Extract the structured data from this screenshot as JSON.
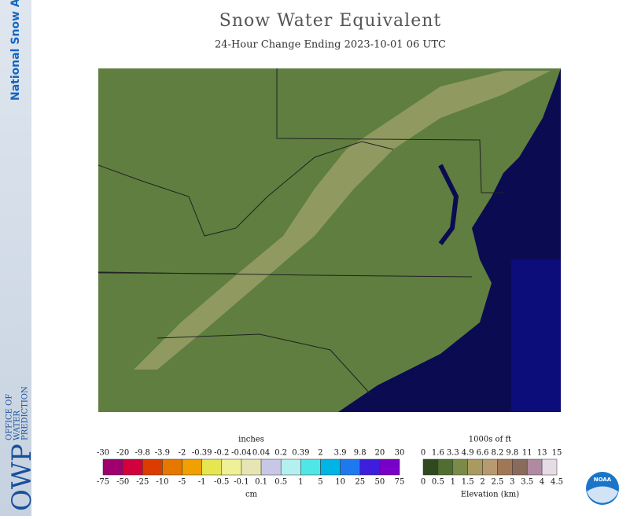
{
  "header": {
    "title": "Snow Water Equivalent",
    "subtitle": "24-Hour Change Ending 2023-10-01 06 UTC"
  },
  "sidebar": {
    "product": "National Snow Analysis",
    "logo": "OWP",
    "office": [
      "OFFICE OF",
      "WATER",
      "PREDICTION"
    ]
  },
  "swe_legend": {
    "top_unit": "inches",
    "bottom_unit": "cm",
    "top_labels": [
      "-30",
      "-20",
      "-9.8",
      "-3.9",
      "-2",
      "-0.39",
      "-0.2",
      "-0.04",
      "0.04",
      "0.2",
      "0.39",
      "2",
      "3.9",
      "9.8",
      "20",
      "30"
    ],
    "bottom_labels": [
      "-75",
      "-50",
      "-25",
      "-10",
      "-5",
      "-1",
      "-0.5",
      "-0.1",
      "0.1",
      "0.5",
      "1",
      "5",
      "10",
      "25",
      "50",
      "75"
    ],
    "colors": [
      "#a0006e",
      "#d2003c",
      "#dc3c00",
      "#e67800",
      "#f0a000",
      "#e6e650",
      "#f0f096",
      "#e6e6b4",
      "#c8c8e6",
      "#b4f0f0",
      "#50e6e6",
      "#00b4e6",
      "#1e78f0",
      "#3c1edc",
      "#7800c8"
    ]
  },
  "elev_legend": {
    "top_unit": "1000s of ft",
    "bottom_unit": "Elevation (km)",
    "top_labels": [
      "0",
      "1.6",
      "3.3",
      "4.9",
      "6.6",
      "8.2",
      "9.8",
      "11",
      "13",
      "15"
    ],
    "bottom_labels": [
      "0",
      "0.5",
      "1",
      "1.5",
      "2",
      "2.5",
      "3",
      "3.5",
      "4",
      "4.5"
    ],
    "colors": [
      "#2e4a1e",
      "#4f6e30",
      "#7a8a48",
      "#a89a60",
      "#b89a70",
      "#a07858",
      "#8a6a5a",
      "#b08aa0",
      "#e6dce6"
    ]
  },
  "badge": {
    "agency": "NOAA"
  }
}
